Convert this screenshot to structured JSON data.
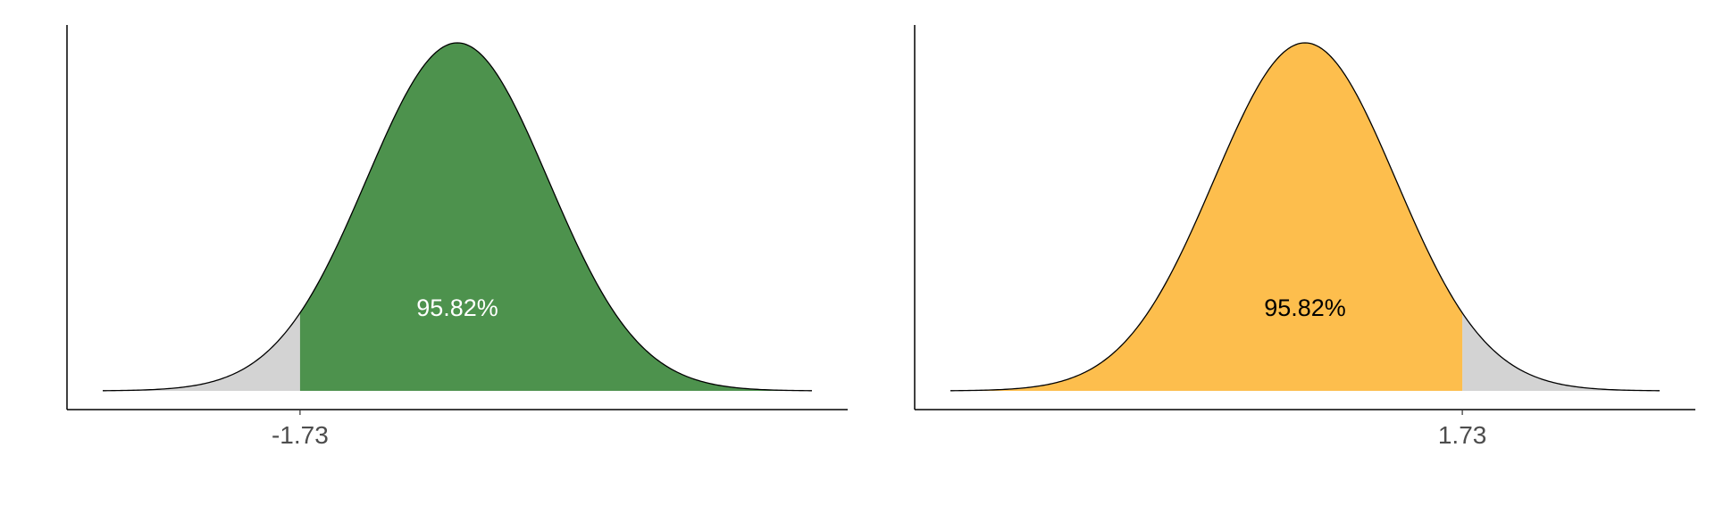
{
  "chart_data": [
    {
      "type": "area",
      "distribution": "standard normal density",
      "xlim": [
        -3.9,
        3.9
      ],
      "ylim": [
        0,
        0.4
      ],
      "curve_color": "#000000",
      "highlight": {
        "from": -1.73,
        "to": 3.9,
        "color": "#4d924d",
        "label": "95.82%",
        "label_color": "#ffffff"
      },
      "tail": {
        "from": -3.9,
        "to": -1.73,
        "color": "#d3d3d3"
      },
      "ticks": [
        {
          "value": -1.73,
          "label": "-1.73"
        }
      ]
    },
    {
      "type": "area",
      "distribution": "standard normal density",
      "xlim": [
        -3.9,
        3.9
      ],
      "ylim": [
        0,
        0.4
      ],
      "curve_color": "#000000",
      "highlight": {
        "from": -3.9,
        "to": 1.73,
        "color": "#fdbe4d",
        "label": "95.82%",
        "label_color": "#000000"
      },
      "tail": {
        "from": 1.73,
        "to": 3.9,
        "color": "#d3d3d3"
      },
      "ticks": [
        {
          "value": 1.73,
          "label": "1.73"
        }
      ]
    }
  ]
}
